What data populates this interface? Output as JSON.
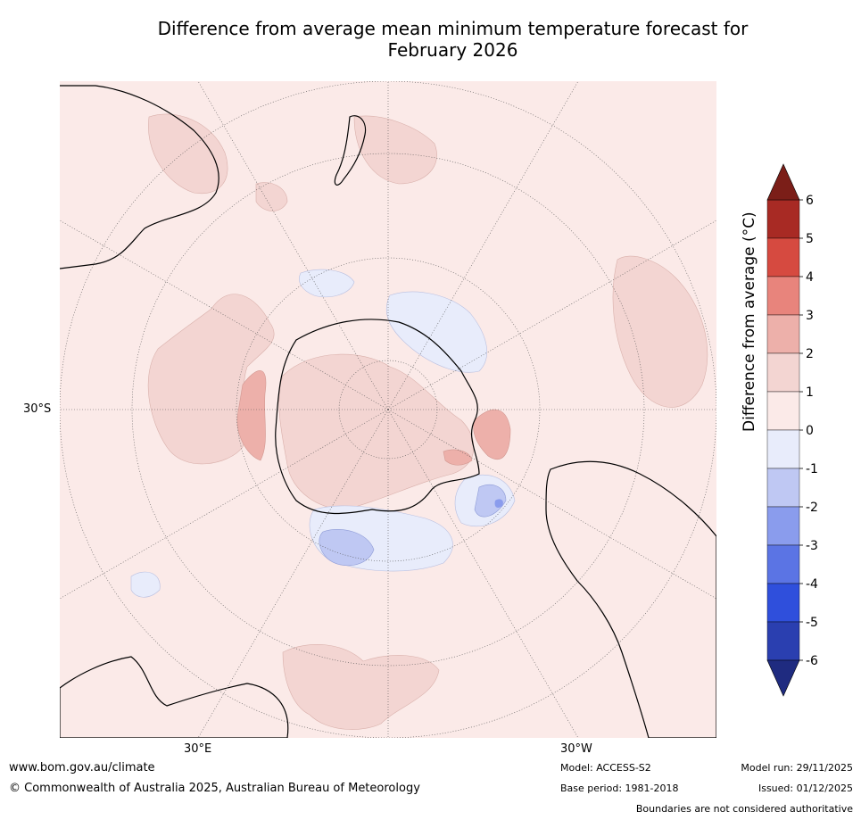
{
  "title_line1": "Difference from average mean minimum temperature forecast for",
  "title_line2": "February 2026",
  "map": {
    "lat_label": "30°S",
    "lon_labels": [
      "30°E",
      "30°W"
    ],
    "ocean_color": "#fbeae8"
  },
  "colorbar": {
    "title": "Difference from average (°C)",
    "ticks": [
      "6",
      "5",
      "4",
      "3",
      "2",
      "1",
      "0",
      "-1",
      "-2",
      "-3",
      "-4",
      "-5",
      "-6"
    ],
    "colors": [
      "#a82a24",
      "#d64a40",
      "#e8847c",
      "#edb0aa",
      "#f3d5d2",
      "#fbeae8",
      "#e8ecfb",
      "#bfc8f3",
      "#8a9ced",
      "#5b74e4",
      "#2f4fdc",
      "#2a3fb0"
    ],
    "over_color": "#7b1e18",
    "under_color": "#1f2b80"
  },
  "footer": {
    "url": "www.bom.gov.au/climate",
    "copyright": "© Commonwealth of Australia 2025, Australian Bureau of Meteorology",
    "model": "Model: ACCESS-S2",
    "base_period": "Base period: 1981-2018",
    "model_run": "Model run: 29/11/2025",
    "issued": "Issued: 01/12/2025",
    "disclaimer": "Boundaries are not considered authoritative"
  }
}
